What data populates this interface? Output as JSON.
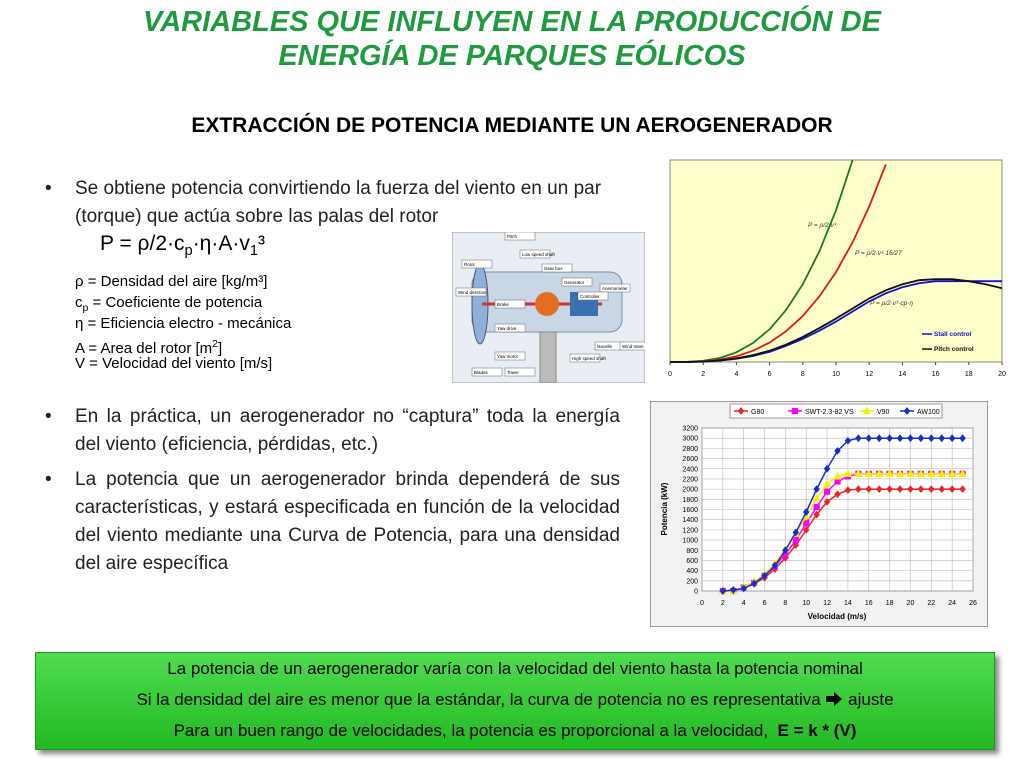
{
  "header": {
    "title_lines": [
      "VARIABLES QUE INFLUYEN EN LA PRODUCCIÓN DE",
      "ENERGÍA DE PARQUES EÓLICOS"
    ],
    "subtitle": "EXTRACCIÓN DE POTENCIA MEDIANTE UN AEROGENERADOR"
  },
  "bullets": [
    "Se obtiene potencia convirtiendo la fuerza del viento en un par (torque) que actúa sobre las palas del rotor",
    "En la práctica, un aerogenerador no “captura” toda la energía del viento (eficiencia, pérdidas, etc.)",
    "La potencia que un aerogenerador brinda dependerá de sus características, y estará especificada en función de la velocidad del viento mediante una Curva de Potencia, para una densidad del aire específica"
  ],
  "formula": [
    "P = ρ/2·c",
    "p",
    "·η·A·v",
    "1",
    "³"
  ],
  "definitions": {
    "rho": "ρ = Densidad del aire [kg/m³]",
    "cp": [
      "c",
      "p",
      " = Coeficiente de potencia"
    ],
    "eta": "η = Eficiencia electro - mecánica",
    "area": [
      "A = Area del rotor [m",
      "2",
      "]"
    ],
    "velocity": "V = Velocidad del viento [m/s]"
  },
  "diagram": {
    "labels": [
      "Pitch",
      "Low speed shaft",
      "Gear box",
      "Rotor",
      "Wind direction",
      "Generator",
      "Anemometer",
      "Controller",
      "Brake",
      "Yaw drive",
      "Yaw motor",
      "High speed shaft",
      "Nacelle",
      "Wind Vane",
      "Blades",
      "Tower"
    ]
  },
  "chart_data": [
    {
      "type": "line",
      "x": [
        0,
        1,
        2,
        3,
        4,
        5,
        6,
        7,
        8,
        9,
        10,
        11,
        12,
        13,
        14,
        15,
        16,
        17,
        18,
        19,
        20
      ],
      "xlim": [
        0,
        20
      ],
      "xticks": [
        0,
        2,
        4,
        6,
        8,
        10,
        12,
        14,
        16,
        18,
        20
      ],
      "ylim": [
        0,
        100
      ],
      "annotations": [
        "P = ρ/2·v³",
        "P = ρ/2·v³·16/27",
        "P = ρ/2·v³·cp·η"
      ],
      "series": [
        {
          "color": "#1a7a1a",
          "values": [
            0,
            0.08,
            0.6,
            2,
            4.8,
            9.4,
            16.2,
            25.8,
            38.5,
            54.8,
            75.1,
            100,
            null,
            null,
            null,
            null,
            null,
            null,
            null,
            null,
            null
          ]
        },
        {
          "color": "#e01818",
          "values": [
            0,
            0.04,
            0.36,
            1.2,
            2.8,
            5.6,
            9.6,
            15.3,
            22.8,
            32.5,
            44.5,
            59.3,
            77,
            97.8,
            null,
            null,
            null,
            null,
            null,
            null,
            null
          ]
        },
        {
          "name": "Stall control",
          "color": "#1010d0",
          "values": [
            0,
            0,
            0.2,
            0.7,
            1.6,
            3,
            5,
            8,
            11.5,
            15.5,
            20,
            25,
            30,
            34,
            37,
            39,
            40,
            40,
            40,
            40,
            40
          ]
        },
        {
          "name": "Pitch control",
          "color": "#111111",
          "values": [
            0,
            0,
            0.2,
            0.8,
            1.8,
            3.4,
            5.6,
            8.6,
            12.4,
            16.8,
            21.5,
            26.5,
            31.5,
            35.5,
            38.5,
            40.5,
            41,
            41,
            40,
            38.5,
            36.5
          ]
        }
      ]
    },
    {
      "type": "line",
      "xlabel": "Velocidad (m/s)",
      "ylabel": "Potencia (kW)",
      "x": [
        2,
        3,
        4,
        5,
        6,
        7,
        8,
        9,
        10,
        11,
        12,
        13,
        14,
        15,
        16,
        17,
        18,
        19,
        20,
        21,
        22,
        23,
        24,
        25
      ],
      "xlim": [
        0,
        26
      ],
      "xticks": [
        0,
        2,
        4,
        6,
        8,
        10,
        12,
        14,
        16,
        18,
        20,
        22,
        24,
        26
      ],
      "ylim": [
        0,
        3200
      ],
      "yticks": [
        0,
        200,
        400,
        600,
        800,
        1000,
        1200,
        1400,
        1600,
        1800,
        2000,
        2200,
        2400,
        2600,
        2800,
        3000,
        3200
      ],
      "grid": true,
      "series": [
        {
          "name": "G80",
          "color": "#e8262a",
          "marker": "diamond",
          "values": [
            0,
            0,
            60,
            140,
            260,
            430,
            650,
            900,
            1200,
            1500,
            1750,
            1900,
            1980,
            2000,
            2000,
            2000,
            2000,
            2000,
            2000,
            2000,
            2000,
            2000,
            2000,
            2000
          ]
        },
        {
          "name": "SWT-2.3-82 VS",
          "color": "#ff00ff",
          "marker": "square",
          "values": [
            0,
            0,
            70,
            160,
            300,
            480,
            720,
            1000,
            1330,
            1650,
            1950,
            2150,
            2250,
            2300,
            2300,
            2300,
            2300,
            2300,
            2300,
            2300,
            2300,
            2300,
            2300,
            2300
          ]
        },
        {
          "name": "V90",
          "color": "#f2f200",
          "marker": "triangle",
          "values": [
            0,
            0,
            80,
            180,
            330,
            540,
            820,
            1120,
            1470,
            1820,
            2100,
            2250,
            2300,
            2300,
            2300,
            2300,
            2300,
            2300,
            2300,
            2300,
            2300,
            2300,
            2300,
            2300
          ]
        },
        {
          "name": "AW100",
          "color": "#1530c8",
          "marker": "diamond",
          "values": [
            0,
            20,
            50,
            150,
            300,
            500,
            800,
            1150,
            1550,
            2000,
            2400,
            2750,
            2950,
            3000,
            3000,
            3000,
            3000,
            3000,
            3000,
            3000,
            3000,
            3000,
            3000,
            3000
          ]
        }
      ]
    }
  ],
  "conclusion": {
    "line1": "La potencia de un aerogenerador varía con la velocidad del viento hasta la potencia nominal",
    "line2": "Si la densidad del aire es menor que la estándar, la curva de potencia no es representativa",
    "line2_end": "ajuste",
    "line3": "Para un buen rango de velocidades, la potencia es proporcional a la velocidad,",
    "line3_bold": "E = k * (V)"
  }
}
